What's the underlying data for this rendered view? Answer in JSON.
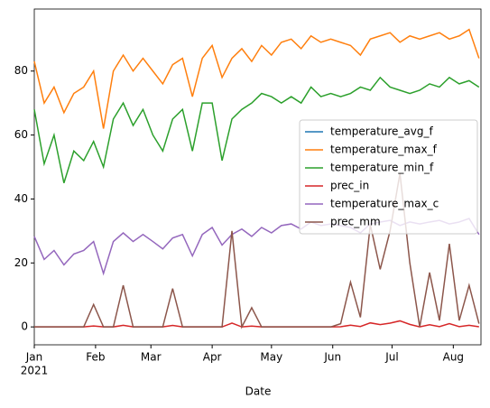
{
  "chart_data": {
    "type": "line",
    "xlabel": "Date",
    "x": [
      "2021-01-01",
      "2021-01-06",
      "2021-01-11",
      "2021-01-16",
      "2021-01-21",
      "2021-01-26",
      "2021-01-31",
      "2021-02-05",
      "2021-02-10",
      "2021-02-15",
      "2021-02-20",
      "2021-02-25",
      "2021-03-02",
      "2021-03-07",
      "2021-03-12",
      "2021-03-17",
      "2021-03-22",
      "2021-03-27",
      "2021-04-01",
      "2021-04-06",
      "2021-04-11",
      "2021-04-16",
      "2021-04-21",
      "2021-04-26",
      "2021-05-01",
      "2021-05-06",
      "2021-05-11",
      "2021-05-16",
      "2021-05-21",
      "2021-05-26",
      "2021-05-31",
      "2021-06-05",
      "2021-06-10",
      "2021-06-15",
      "2021-06-20",
      "2021-06-25",
      "2021-06-30",
      "2021-07-05",
      "2021-07-10",
      "2021-07-15",
      "2021-07-20",
      "2021-07-25",
      "2021-07-30",
      "2021-08-04",
      "2021-08-09",
      "2021-08-14"
    ],
    "xlim": [
      "2021-01-01",
      "2021-08-15"
    ],
    "xticks": [
      {
        "value": "2021-01-01",
        "label": "Jan"
      },
      {
        "value": "2021-02-01",
        "label": "Feb"
      },
      {
        "value": "2021-03-01",
        "label": "Mar"
      },
      {
        "value": "2021-04-01",
        "label": "Apr"
      },
      {
        "value": "2021-05-01",
        "label": "May"
      },
      {
        "value": "2021-06-01",
        "label": "Jun"
      },
      {
        "value": "2021-07-01",
        "label": "Jul"
      },
      {
        "value": "2021-08-01",
        "label": "Aug"
      }
    ],
    "year_label": "2021",
    "ylim": [
      -5.6,
      99.4
    ],
    "yticks": [
      0,
      20,
      40,
      60,
      80
    ],
    "legend": "center right",
    "series": [
      {
        "name": "temperature_avg_f",
        "color": "#1f77b4",
        "values": [
          null,
          null,
          null,
          null,
          null,
          null,
          null,
          null,
          null,
          null,
          null,
          null,
          null,
          null,
          null,
          null,
          null,
          null,
          null,
          null,
          null,
          null,
          null,
          null,
          null,
          null,
          null,
          null,
          null,
          null,
          null,
          null,
          null,
          null,
          null,
          null,
          null,
          null,
          null,
          null,
          null,
          null,
          null,
          null,
          null,
          null
        ]
      },
      {
        "name": "temperature_max_f",
        "color": "#ff7f0e",
        "values": [
          83,
          70,
          75,
          67,
          73,
          75,
          80,
          62,
          80,
          85,
          80,
          84,
          80,
          76,
          82,
          84,
          72,
          84,
          88,
          78,
          84,
          87,
          83,
          88,
          85,
          89,
          90,
          87,
          91,
          89,
          90,
          89,
          88,
          85,
          90,
          91,
          92,
          89,
          91,
          90,
          91,
          92,
          90,
          91,
          93,
          84
        ]
      },
      {
        "name": "temperature_min_f",
        "color": "#2ca02c",
        "values": [
          68,
          51,
          60,
          45,
          55,
          52,
          58,
          50,
          65,
          70,
          63,
          68,
          60,
          55,
          65,
          68,
          55,
          70,
          70,
          52,
          65,
          68,
          70,
          73,
          72,
          70,
          72,
          70,
          75,
          72,
          73,
          72,
          73,
          75,
          74,
          78,
          75,
          74,
          73,
          74,
          76,
          75,
          78,
          76,
          77,
          75
        ]
      },
      {
        "name": "prec_in",
        "color": "#d62728",
        "values": [
          0,
          0,
          0,
          0,
          0,
          0,
          0.28,
          0,
          0,
          0.51,
          0,
          0,
          0,
          0,
          0.47,
          0,
          0,
          0,
          0,
          0,
          1.18,
          0,
          0.24,
          0,
          0,
          0,
          0,
          0,
          0,
          0,
          0,
          0.04,
          0.55,
          0.12,
          1.26,
          0.71,
          1.18,
          1.89,
          0.79,
          0,
          0.67,
          0.08,
          1.02,
          0.08,
          0.51,
          0.04
        ]
      },
      {
        "name": "temperature_max_c",
        "color": "#9467bd",
        "values": [
          28.3,
          21.1,
          23.9,
          19.4,
          22.8,
          23.9,
          26.7,
          16.7,
          26.7,
          29.4,
          26.7,
          28.9,
          26.7,
          24.4,
          27.8,
          28.9,
          22.2,
          28.9,
          31.1,
          25.6,
          28.9,
          30.6,
          28.3,
          31.1,
          29.4,
          31.7,
          32.2,
          30.6,
          32.8,
          31.7,
          32.2,
          31.7,
          31.1,
          29.4,
          32.2,
          32.8,
          33.3,
          31.7,
          32.8,
          32.2,
          32.8,
          33.3,
          32.2,
          32.8,
          33.9,
          28.9
        ]
      },
      {
        "name": "prec_mm",
        "color": "#8c564b",
        "values": [
          0,
          0,
          0,
          0,
          0,
          0,
          7,
          0,
          0,
          13,
          0,
          0,
          0,
          0,
          12,
          0,
          0,
          0,
          0,
          0,
          30,
          0,
          6,
          0,
          0,
          0,
          0,
          0,
          0,
          0,
          0,
          1,
          14,
          3,
          32,
          18,
          30,
          48,
          20,
          0,
          17,
          2,
          26,
          2,
          13,
          1
        ]
      }
    ]
  }
}
